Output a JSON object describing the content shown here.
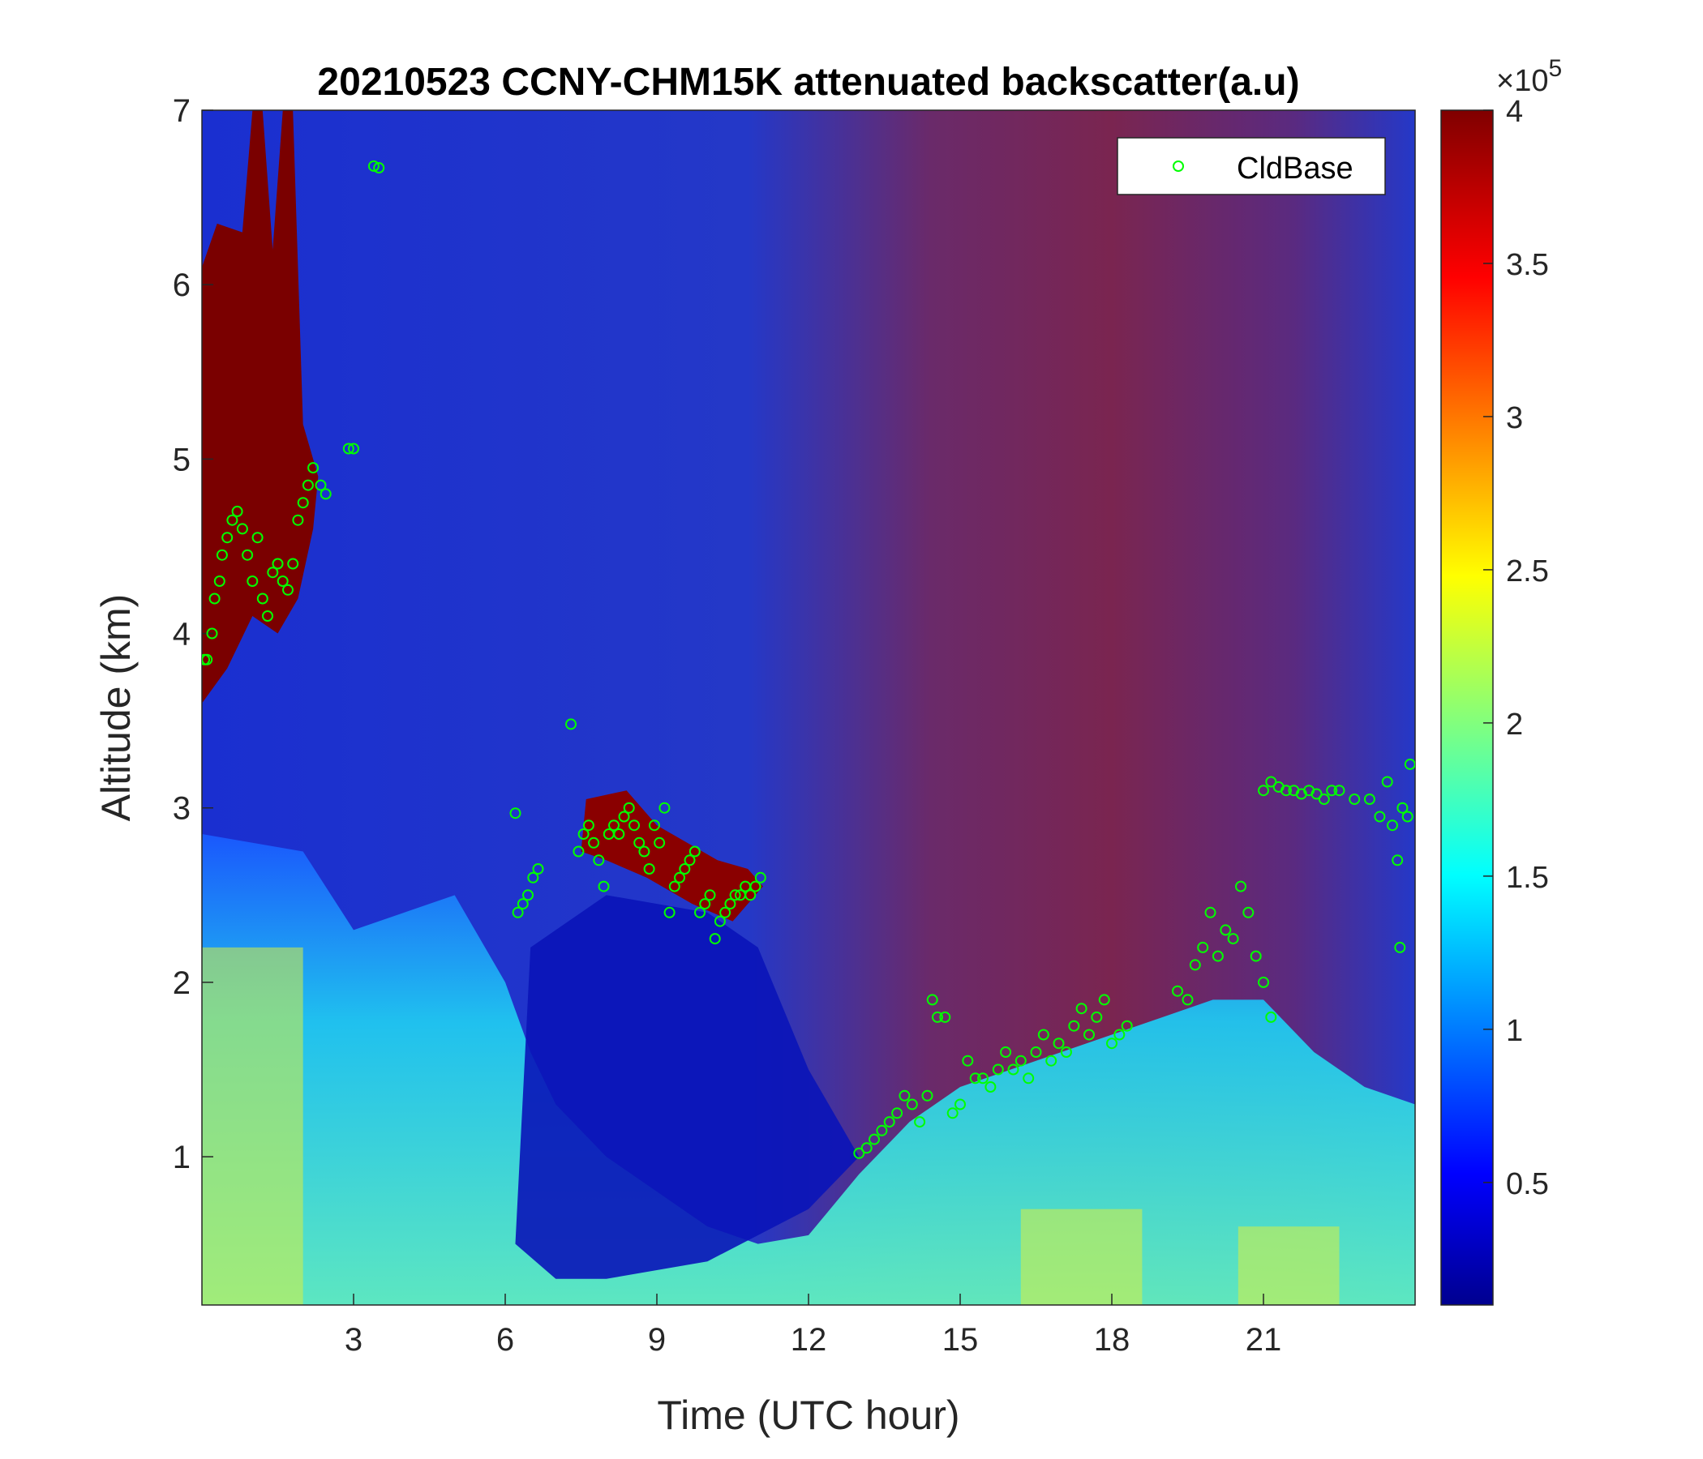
{
  "chart_data": {
    "type": "heatmap",
    "title": "20210523 CCNY-CHM15K attenuated backscatter(a.u)",
    "xlabel": "Time (UTC hour)",
    "ylabel": "Altitude (km)",
    "xlim": [
      0,
      24
    ],
    "ylim": [
      0.15,
      7
    ],
    "xticks": [
      3,
      6,
      9,
      12,
      15,
      18,
      21
    ],
    "yticks": [
      1,
      2,
      3,
      4,
      5,
      6,
      7
    ],
    "xtick_labels": [
      "3",
      "6",
      "9",
      "12",
      "15",
      "18",
      "21"
    ],
    "ytick_labels": [
      "1",
      "2",
      "3",
      "4",
      "5",
      "6",
      "7"
    ],
    "colormap": "jet",
    "colorbar": {
      "range": [
        10000,
        400000
      ],
      "ticks": [
        50000,
        100000,
        150000,
        200000,
        250000,
        300000,
        350000,
        400000
      ],
      "tick_labels": [
        "0.5",
        "1",
        "1.5",
        "2",
        "2.5",
        "3",
        "3.5",
        "4"
      ],
      "exponent_label": "×10",
      "exponent_power": "5"
    },
    "legend": {
      "position": "top-right",
      "entries": [
        "CldBase"
      ]
    },
    "series": [
      {
        "name": "CldBase",
        "marker": "circle",
        "color": "#00ff00",
        "points": [
          [
            0.05,
            3.85
          ],
          [
            0.1,
            3.85
          ],
          [
            0.2,
            4.0
          ],
          [
            0.25,
            4.2
          ],
          [
            0.35,
            4.3
          ],
          [
            0.4,
            4.45
          ],
          [
            0.5,
            4.55
          ],
          [
            0.6,
            4.65
          ],
          [
            0.7,
            4.7
          ],
          [
            0.8,
            4.6
          ],
          [
            0.9,
            4.45
          ],
          [
            1.0,
            4.3
          ],
          [
            1.1,
            4.55
          ],
          [
            1.2,
            4.2
          ],
          [
            1.3,
            4.1
          ],
          [
            1.4,
            4.35
          ],
          [
            1.5,
            4.4
          ],
          [
            1.6,
            4.3
          ],
          [
            1.7,
            4.25
          ],
          [
            1.8,
            4.4
          ],
          [
            1.9,
            4.65
          ],
          [
            2.0,
            4.75
          ],
          [
            2.1,
            4.85
          ],
          [
            2.2,
            4.95
          ],
          [
            2.35,
            4.85
          ],
          [
            2.45,
            4.8
          ],
          [
            2.9,
            5.06
          ],
          [
            3.0,
            5.06
          ],
          [
            3.4,
            6.68
          ],
          [
            3.5,
            6.67
          ],
          [
            6.2,
            2.97
          ],
          [
            6.25,
            2.4
          ],
          [
            6.35,
            2.45
          ],
          [
            6.45,
            2.5
          ],
          [
            6.55,
            2.6
          ],
          [
            6.65,
            2.65
          ],
          [
            7.3,
            3.48
          ],
          [
            7.45,
            2.75
          ],
          [
            7.55,
            2.85
          ],
          [
            7.65,
            2.9
          ],
          [
            7.75,
            2.8
          ],
          [
            7.85,
            2.7
          ],
          [
            7.95,
            2.55
          ],
          [
            8.05,
            2.85
          ],
          [
            8.15,
            2.9
          ],
          [
            8.25,
            2.85
          ],
          [
            8.35,
            2.95
          ],
          [
            8.45,
            3.0
          ],
          [
            8.55,
            2.9
          ],
          [
            8.65,
            2.8
          ],
          [
            8.75,
            2.75
          ],
          [
            8.85,
            2.65
          ],
          [
            8.95,
            2.9
          ],
          [
            9.05,
            2.8
          ],
          [
            9.15,
            3.0
          ],
          [
            9.25,
            2.4
          ],
          [
            9.35,
            2.55
          ],
          [
            9.45,
            2.6
          ],
          [
            9.55,
            2.65
          ],
          [
            9.65,
            2.7
          ],
          [
            9.75,
            2.75
          ],
          [
            9.85,
            2.4
          ],
          [
            9.95,
            2.45
          ],
          [
            10.05,
            2.5
          ],
          [
            10.15,
            2.25
          ],
          [
            10.25,
            2.35
          ],
          [
            10.35,
            2.4
          ],
          [
            10.45,
            2.45
          ],
          [
            10.55,
            2.5
          ],
          [
            10.65,
            2.5
          ],
          [
            10.75,
            2.55
          ],
          [
            10.85,
            2.5
          ],
          [
            10.95,
            2.55
          ],
          [
            11.05,
            2.6
          ],
          [
            13.0,
            1.02
          ],
          [
            13.15,
            1.05
          ],
          [
            13.3,
            1.1
          ],
          [
            13.45,
            1.15
          ],
          [
            13.6,
            1.2
          ],
          [
            13.75,
            1.25
          ],
          [
            13.9,
            1.35
          ],
          [
            14.05,
            1.3
          ],
          [
            14.2,
            1.2
          ],
          [
            14.35,
            1.35
          ],
          [
            14.45,
            1.9
          ],
          [
            14.55,
            1.8
          ],
          [
            14.7,
            1.8
          ],
          [
            14.85,
            1.25
          ],
          [
            15.0,
            1.3
          ],
          [
            15.15,
            1.55
          ],
          [
            15.3,
            1.45
          ],
          [
            15.45,
            1.45
          ],
          [
            15.6,
            1.4
          ],
          [
            15.75,
            1.5
          ],
          [
            15.9,
            1.6
          ],
          [
            16.05,
            1.5
          ],
          [
            16.2,
            1.55
          ],
          [
            16.35,
            1.45
          ],
          [
            16.5,
            1.6
          ],
          [
            16.65,
            1.7
          ],
          [
            16.8,
            1.55
          ],
          [
            16.95,
            1.65
          ],
          [
            17.1,
            1.6
          ],
          [
            17.25,
            1.75
          ],
          [
            17.4,
            1.85
          ],
          [
            17.55,
            1.7
          ],
          [
            17.7,
            1.8
          ],
          [
            17.85,
            1.9
          ],
          [
            18.0,
            1.65
          ],
          [
            18.15,
            1.7
          ],
          [
            18.3,
            1.75
          ],
          [
            19.3,
            1.95
          ],
          [
            19.5,
            1.9
          ],
          [
            19.65,
            2.1
          ],
          [
            19.8,
            2.2
          ],
          [
            19.95,
            2.4
          ],
          [
            20.1,
            2.15
          ],
          [
            20.25,
            2.3
          ],
          [
            20.4,
            2.25
          ],
          [
            20.55,
            2.55
          ],
          [
            20.7,
            2.4
          ],
          [
            20.85,
            2.15
          ],
          [
            21.0,
            2.0
          ],
          [
            21.15,
            1.8
          ],
          [
            21.0,
            3.1
          ],
          [
            21.15,
            3.15
          ],
          [
            21.3,
            3.12
          ],
          [
            21.45,
            3.1
          ],
          [
            21.6,
            3.1
          ],
          [
            21.75,
            3.08
          ],
          [
            21.9,
            3.1
          ],
          [
            22.05,
            3.08
          ],
          [
            22.2,
            3.05
          ],
          [
            22.35,
            3.1
          ],
          [
            22.5,
            3.1
          ],
          [
            22.8,
            3.05
          ],
          [
            23.1,
            3.05
          ],
          [
            23.3,
            2.95
          ],
          [
            23.45,
            3.15
          ],
          [
            23.55,
            2.9
          ],
          [
            23.65,
            2.7
          ],
          [
            23.7,
            2.2
          ],
          [
            23.75,
            3.0
          ],
          [
            23.85,
            2.95
          ],
          [
            23.9,
            3.25
          ]
        ]
      }
    ]
  }
}
